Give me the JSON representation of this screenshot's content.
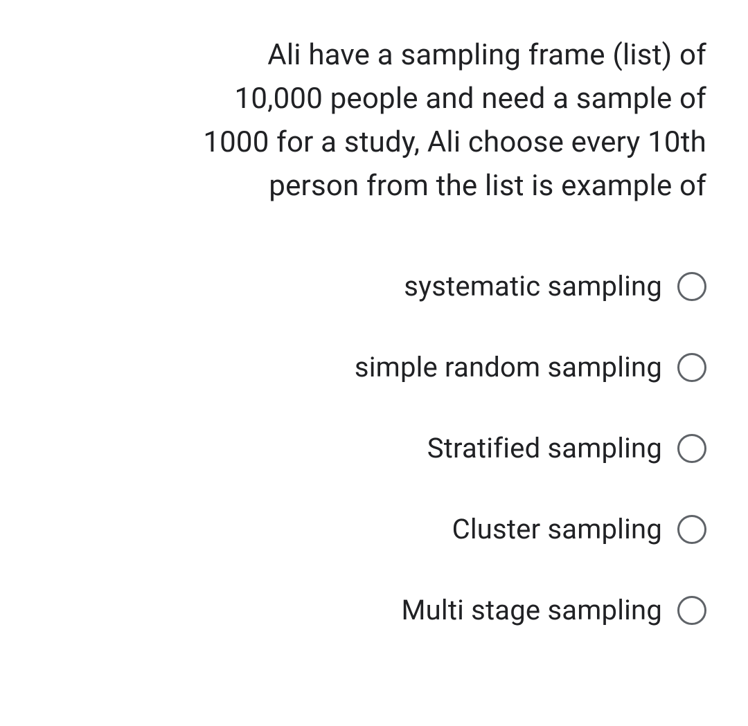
{
  "question": {
    "text": "Ali have a sampling frame (list) of 10,000 people and  need a sample of 1000 for a study, Ali choose every 10th person from the list is example of"
  },
  "options": [
    {
      "label": "systematic sampling",
      "selected": false
    },
    {
      "label": "simple random sampling",
      "selected": false
    },
    {
      "label": "Stratified sampling",
      "selected": false
    },
    {
      "label": "Cluster sampling",
      "selected": false
    },
    {
      "label": "Multi stage sampling",
      "selected": false
    }
  ],
  "style": {
    "background_color": "#ffffff",
    "text_color": "#202124",
    "radio_border_color": "#5f6368",
    "question_fontsize": 42,
    "option_fontsize": 40
  }
}
